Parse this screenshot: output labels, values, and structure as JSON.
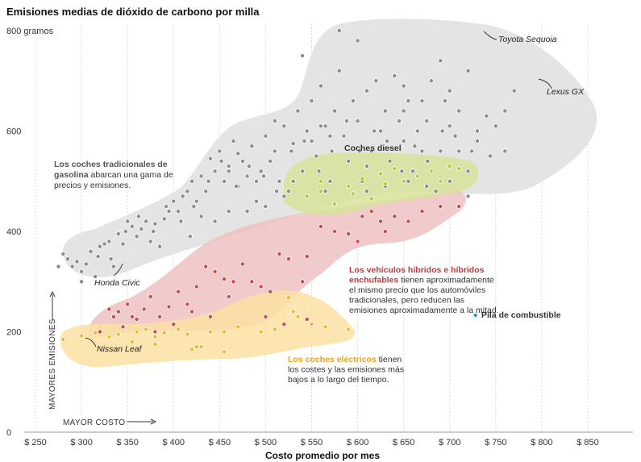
{
  "chart_data": {
    "type": "scatter",
    "title": "Emisiones medias de dióxido de carbono por milla",
    "xlabel": "Costo promedio por mes",
    "ylabel": "",
    "xlim": [
      245,
      900
    ],
    "ylim": [
      0,
      820
    ],
    "x_ticks": [
      250,
      300,
      350,
      400,
      450,
      500,
      550,
      600,
      650,
      700,
      750,
      800,
      850
    ],
    "x_tick_labels": [
      "$ 250",
      "$ 300",
      "$ 350",
      "$ 400",
      "$ 450",
      "$ 500",
      "$ 550",
      "$ 600",
      "$ 650",
      "$ 700",
      "$ 750",
      "$ 800",
      "$ 850"
    ],
    "y_ticks": [
      0,
      200,
      400,
      600,
      800
    ],
    "y_tick_labels": [
      "0",
      "200",
      "400",
      "600",
      "800 gramos"
    ],
    "grid": "vertical",
    "direction_labels": {
      "y": "MAYORES EMISIONES",
      "x": "MAYOR COSTO"
    },
    "colors": {
      "gas": "#8c8c8c",
      "diesel": "#b5c93c",
      "hybrid": "#cc4a4a",
      "electric": "#f2b630",
      "fuelcell": "#2b9ad6",
      "gas_region": "#e3e3e3",
      "diesel_region": "#d7e39a",
      "hybrid_region": "#efc2c2",
      "electric_region": "#fbe0a3"
    },
    "annotations": {
      "gas": {
        "bold": "Los coches tradicionales de gasolina",
        "rest": " abarcan una gama de precios y emisiones."
      },
      "diesel": {
        "bold": "Coches diesel"
      },
      "hybrid": {
        "bold": "Los vehículos híbridos e híbridos enchufables",
        "rest": " tienen aproximadamente el mismo precio que los automóviles tradicionales, pero reducen las emisiones aproximadamente a la mitad."
      },
      "electric": {
        "bold": "Los coches eléctricos",
        "rest": " tienen los costes y las emisiones más bajos a lo largo del tiempo."
      },
      "fuelcell": {
        "bold": "Pila de combustible"
      }
    },
    "labeled_points": [
      {
        "label": "Toyota Sequoia",
        "x": 735,
        "y": 797
      },
      {
        "label": "Lexus GX",
        "x": 791,
        "y": 700
      },
      {
        "label": "Honda Civic",
        "x": 305,
        "y": 324
      },
      {
        "label": "Nissan Leaf",
        "x": 310,
        "y": 184
      }
    ],
    "series": [
      {
        "name": "Gasolina",
        "points": [
          [
            275,
            330
          ],
          [
            280,
            355
          ],
          [
            290,
            330
          ],
          [
            295,
            340
          ],
          [
            300,
            300
          ],
          [
            305,
            335
          ],
          [
            310,
            360
          ],
          [
            315,
            310
          ],
          [
            320,
            370
          ],
          [
            325,
            375
          ],
          [
            330,
            380
          ],
          [
            335,
            330
          ],
          [
            340,
            395
          ],
          [
            345,
            375
          ],
          [
            350,
            420
          ],
          [
            355,
            410
          ],
          [
            360,
            390
          ],
          [
            365,
            405
          ],
          [
            370,
            420
          ],
          [
            375,
            380
          ],
          [
            380,
            415
          ],
          [
            385,
            370
          ],
          [
            390,
            425
          ],
          [
            395,
            440
          ],
          [
            400,
            460
          ],
          [
            405,
            440
          ],
          [
            410,
            470
          ],
          [
            415,
            480
          ],
          [
            420,
            500
          ],
          [
            425,
            460
          ],
          [
            430,
            510
          ],
          [
            435,
            480
          ],
          [
            440,
            545
          ],
          [
            445,
            520
          ],
          [
            450,
            560
          ],
          [
            455,
            500
          ],
          [
            460,
            530
          ],
          [
            465,
            580
          ],
          [
            470,
            490
          ],
          [
            475,
            540
          ],
          [
            480,
            510
          ],
          [
            485,
            570
          ],
          [
            490,
            460
          ],
          [
            495,
            520
          ],
          [
            500,
            590
          ],
          [
            505,
            540
          ],
          [
            510,
            560
          ],
          [
            515,
            500
          ],
          [
            520,
            610
          ],
          [
            525,
            480
          ],
          [
            530,
            575
          ],
          [
            535,
            640
          ],
          [
            540,
            520
          ],
          [
            545,
            600
          ],
          [
            550,
            660
          ],
          [
            555,
            550
          ],
          [
            560,
            690
          ],
          [
            565,
            610
          ],
          [
            570,
            500
          ],
          [
            575,
            640
          ],
          [
            580,
            720
          ],
          [
            585,
            590
          ],
          [
            590,
            540
          ],
          [
            595,
            660
          ],
          [
            600,
            620
          ],
          [
            605,
            500
          ],
          [
            610,
            680
          ],
          [
            615,
            560
          ],
          [
            620,
            700
          ],
          [
            625,
            600
          ],
          [
            630,
            640
          ],
          [
            635,
            540
          ],
          [
            640,
            710
          ],
          [
            645,
            620
          ],
          [
            650,
            580
          ],
          [
            655,
            660
          ],
          [
            660,
            520
          ],
          [
            665,
            600
          ],
          [
            670,
            560
          ],
          [
            675,
            620
          ],
          [
            680,
            700
          ],
          [
            685,
            480
          ],
          [
            690,
            740
          ],
          [
            695,
            660
          ],
          [
            700,
            610
          ],
          [
            710,
            560
          ],
          [
            720,
            520
          ],
          [
            730,
            580
          ],
          [
            740,
            630
          ],
          [
            750,
            610
          ],
          [
            760,
            640
          ],
          [
            770,
            680
          ],
          [
            285,
            345
          ],
          [
            300,
            320
          ],
          [
            318,
            350
          ],
          [
            332,
            345
          ],
          [
            348,
            400
          ],
          [
            362,
            430
          ],
          [
            378,
            400
          ],
          [
            392,
            450
          ],
          [
            408,
            420
          ],
          [
            422,
            450
          ],
          [
            438,
            500
          ],
          [
            452,
            540
          ],
          [
            468,
            490
          ],
          [
            482,
            530
          ],
          [
            498,
            510
          ],
          [
            512,
            480
          ],
          [
            528,
            560
          ],
          [
            542,
            580
          ],
          [
            558,
            520
          ],
          [
            572,
            560
          ],
          [
            588,
            620
          ],
          [
            602,
            560
          ],
          [
            618,
            600
          ],
          [
            632,
            580
          ],
          [
            648,
            520
          ],
          [
            662,
            570
          ],
          [
            676,
            540
          ],
          [
            692,
            600
          ],
          [
            706,
            590
          ],
          [
            724,
            560
          ],
          [
            744,
            550
          ],
          [
            418,
            390
          ],
          [
            430,
            430
          ],
          [
            445,
            420
          ],
          [
            460,
            440
          ],
          [
            480,
            440
          ],
          [
            500,
            450
          ],
          [
            520,
            470
          ],
          [
            545,
            470
          ],
          [
            565,
            480
          ],
          [
            590,
            490
          ],
          [
            610,
            480
          ],
          [
            630,
            490
          ],
          [
            655,
            500
          ],
          [
            675,
            490
          ],
          [
            700,
            500
          ],
          [
            720,
            470
          ],
          [
            540,
            750
          ],
          [
            560,
            610
          ],
          [
            580,
            800
          ],
          [
            600,
            780
          ],
          [
            650,
            690
          ],
          [
            700,
            680
          ],
          [
            720,
            720
          ],
          [
            460,
            520
          ],
          [
            470,
            555
          ],
          [
            490,
            500
          ],
          [
            510,
            620
          ],
          [
            530,
            500
          ],
          [
            550,
            580
          ],
          [
            570,
            590
          ],
          [
            610,
            530
          ],
          [
            650,
            640
          ],
          [
            670,
            660
          ],
          [
            690,
            560
          ],
          [
            710,
            640
          ],
          [
            730,
            600
          ],
          [
            760,
            560
          ]
        ]
      },
      {
        "name": "Diesel",
        "points": [
          [
            545,
            470
          ],
          [
            560,
            480
          ],
          [
            575,
            455
          ],
          [
            590,
            490
          ],
          [
            605,
            505
          ],
          [
            615,
            465
          ],
          [
            625,
            515
          ],
          [
            640,
            525
          ],
          [
            650,
            500
          ],
          [
            665,
            510
          ],
          [
            680,
            520
          ],
          [
            690,
            500
          ],
          [
            700,
            530
          ],
          [
            710,
            525
          ],
          [
            595,
            475
          ],
          [
            630,
            495
          ],
          [
            560,
            500
          ]
        ]
      },
      {
        "name": "Híbridos",
        "points": [
          [
            320,
            200
          ],
          [
            330,
            245
          ],
          [
            335,
            230
          ],
          [
            340,
            240
          ],
          [
            345,
            210
          ],
          [
            350,
            255
          ],
          [
            355,
            230
          ],
          [
            360,
            225
          ],
          [
            368,
            245
          ],
          [
            375,
            270
          ],
          [
            385,
            230
          ],
          [
            395,
            250
          ],
          [
            405,
            280
          ],
          [
            415,
            255
          ],
          [
            425,
            290
          ],
          [
            435,
            330
          ],
          [
            445,
            320
          ],
          [
            455,
            305
          ],
          [
            465,
            300
          ],
          [
            475,
            335
          ],
          [
            485,
            300
          ],
          [
            495,
            290
          ],
          [
            505,
            280
          ],
          [
            515,
            355
          ],
          [
            525,
            345
          ],
          [
            540,
            300
          ],
          [
            545,
            350
          ],
          [
            560,
            410
          ],
          [
            575,
            400
          ],
          [
            590,
            395
          ],
          [
            605,
            430
          ],
          [
            615,
            440
          ],
          [
            625,
            420
          ],
          [
            640,
            430
          ],
          [
            655,
            420
          ],
          [
            670,
            440
          ],
          [
            690,
            450
          ],
          [
            710,
            450
          ],
          [
            380,
            200
          ],
          [
            400,
            215
          ],
          [
            420,
            240
          ],
          [
            440,
            230
          ],
          [
            460,
            270
          ],
          [
            500,
            230
          ],
          [
            520,
            215
          ],
          [
            545,
            225
          ],
          [
            600,
            380
          ],
          [
            630,
            400
          ]
        ]
      },
      {
        "name": "Eléctricos",
        "points": [
          [
            280,
            185
          ],
          [
            300,
            192
          ],
          [
            315,
            198
          ],
          [
            330,
            190
          ],
          [
            340,
            195
          ],
          [
            355,
            180
          ],
          [
            360,
            200
          ],
          [
            370,
            205
          ],
          [
            380,
            190
          ],
          [
            390,
            198
          ],
          [
            405,
            205
          ],
          [
            415,
            195
          ],
          [
            425,
            170
          ],
          [
            440,
            200
          ],
          [
            455,
            200
          ],
          [
            470,
            210
          ],
          [
            495,
            200
          ],
          [
            510,
            205
          ],
          [
            525,
            268
          ],
          [
            530,
            240
          ],
          [
            535,
            230
          ],
          [
            550,
            215
          ],
          [
            565,
            210
          ],
          [
            590,
            205
          ],
          [
            420,
            165
          ],
          [
            430,
            170
          ],
          [
            455,
            160
          ],
          [
            380,
            175
          ]
        ]
      },
      {
        "name": "Pila de combustible",
        "points": [
          [
            728,
            233
          ]
        ]
      }
    ]
  }
}
